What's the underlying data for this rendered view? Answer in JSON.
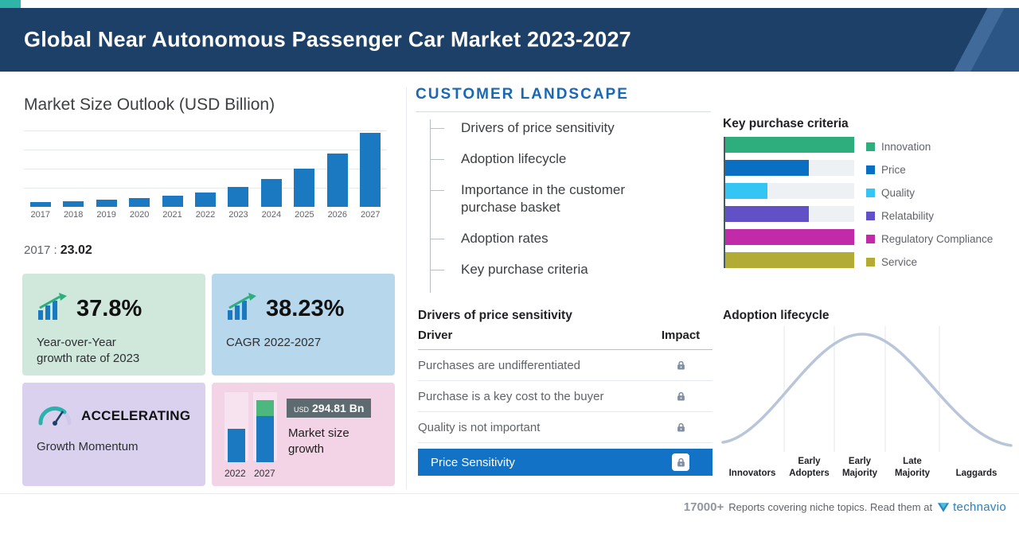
{
  "header": {
    "title": "Global Near Autonomous Passenger Car Market 2023-2027"
  },
  "market_size": {
    "base_label": "2017 :",
    "base_value": "23.02"
  },
  "chart_data": [
    {
      "type": "bar",
      "title": "Market Size Outlook (USD Billion)",
      "categories": [
        "2017",
        "2018",
        "2019",
        "2020",
        "2021",
        "2022",
        "2023",
        "2024",
        "2025",
        "2026",
        "2027"
      ],
      "values": [
        23.02,
        28.5,
        35.2,
        43.5,
        55.5,
        72.8,
        100.3,
        138.6,
        191.6,
        264.9,
        367.6
      ],
      "ylabel": "USD Billion",
      "ylim": [
        0,
        380
      ],
      "grid": true,
      "bar_color": "#1b79c2"
    },
    {
      "type": "bar",
      "orientation": "horizontal",
      "title": "Key purchase criteria",
      "categories": [
        "Innovation",
        "Price",
        "Quality",
        "Relatability",
        "Regulatory Compliance",
        "Service"
      ],
      "values": [
        100,
        65,
        33,
        65,
        100,
        100
      ],
      "xlim": [
        0,
        100
      ],
      "colors": [
        "#2fae7d",
        "#0a6fc2",
        "#33c5f3",
        "#6150c6",
        "#c12aa9",
        "#b2ac37"
      ],
      "legend_position": "right"
    },
    {
      "type": "area",
      "title": "Adoption lifecycle",
      "curve": "bell",
      "categories": [
        "Innovators",
        "Early Adopters",
        "Early Majority",
        "Late Majority",
        "Laggards"
      ]
    }
  ],
  "cards": {
    "yoy": {
      "value": "37.8%",
      "label_line1": "Year-over-Year",
      "label_line2": "growth rate of 2023"
    },
    "cagr": {
      "value": "38.23%",
      "label": "CAGR 2022-2027"
    },
    "momentum": {
      "value": "ACCELERATING",
      "label": "Growth Momentum"
    },
    "growth": {
      "currency": "USD",
      "value": "294.81 Bn",
      "label": "Market size growth",
      "year_start": "2022",
      "year_end": "2027"
    }
  },
  "customer_landscape": {
    "title": "CUSTOMER LANDSCAPE",
    "items": [
      "Drivers of price sensitivity",
      "Adoption lifecycle",
      "Importance in the customer purchase basket",
      "Adoption rates",
      "Key purchase criteria"
    ]
  },
  "price_table": {
    "title": "Drivers of price sensitivity",
    "columns": [
      "Driver",
      "Impact"
    ],
    "rows": [
      {
        "driver": "Purchases are undifferentiated",
        "highlight": false
      },
      {
        "driver": "Purchase is a key cost to the buyer",
        "highlight": false
      },
      {
        "driver": "Quality is not important",
        "highlight": false
      },
      {
        "driver": "Price Sensitivity",
        "highlight": true
      }
    ]
  },
  "footer": {
    "count": "17000+",
    "text": "Reports covering niche topics. Read them at",
    "brand": "technavio"
  },
  "colors": {
    "header_bg": "#1d4068",
    "accent_teal": "#2fb4a8",
    "primary_blue": "#1b79c2",
    "landscape_blue": "#1a67b3",
    "highlight_row_blue": "#1273c6",
    "card_green": "#cfe8db",
    "card_blue": "#b7d7ec",
    "card_purple": "#d9d1ee",
    "card_pink": "#f3d3e6"
  }
}
